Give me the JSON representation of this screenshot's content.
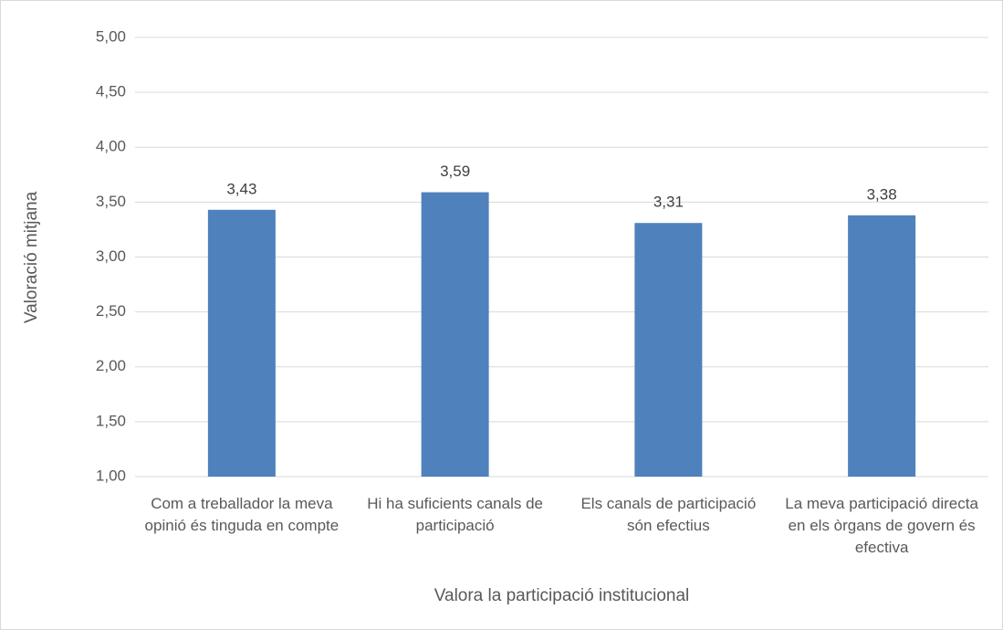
{
  "chart_data": {
    "type": "bar",
    "x_label": "Valora la participació institucional",
    "y_label": "Valoració mitjana",
    "categories": [
      "Com a treballador la meva opinió és tinguda en compte",
      "Hi ha suficients canals de participació",
      "Els canals de participació són efectius",
      "La meva participació directa en els òrgans de govern és efectiva"
    ],
    "values": [
      3.43,
      3.59,
      3.31,
      3.38
    ],
    "value_labels": [
      "3,43",
      "3,59",
      "3,31",
      "3,38"
    ],
    "color": "#4f81bd",
    "ylim": [
      1,
      5
    ],
    "yticks": [
      {
        "value": 1,
        "label": "1,00"
      },
      {
        "value": 1.5,
        "label": "1,50"
      },
      {
        "value": 2,
        "label": "2,00"
      },
      {
        "value": 2.5,
        "label": "2,50"
      },
      {
        "value": 3,
        "label": "3,00"
      },
      {
        "value": 3.5,
        "label": "3,50"
      },
      {
        "value": 4,
        "label": "4,00"
      },
      {
        "value": 4.5,
        "label": "4,50"
      },
      {
        "value": 5,
        "label": "5,00"
      }
    ],
    "grid": true
  }
}
